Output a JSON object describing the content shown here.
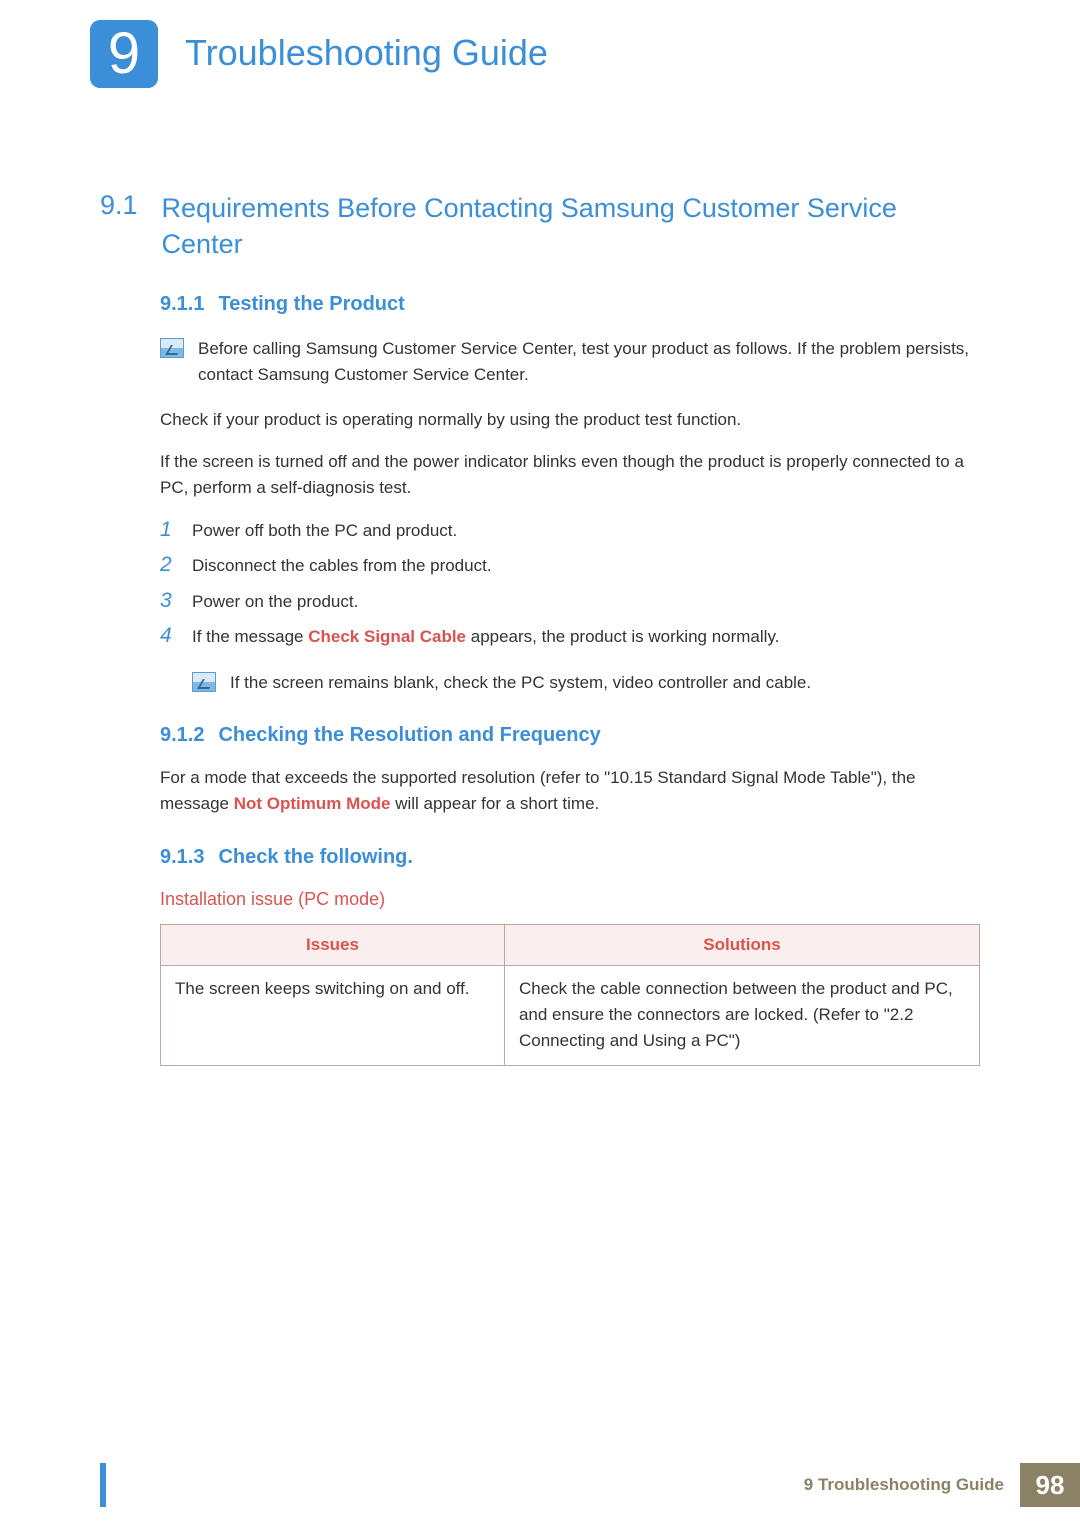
{
  "colors": {
    "accent_blue": "#3b8ed8",
    "accent_red": "#d9534f",
    "footer_tan": "#8b8265",
    "table_header_bg": "#fbeeee",
    "table_border": "#bca8a0",
    "body_text": "#333333"
  },
  "chapter": {
    "number": "9",
    "title": "Troubleshooting Guide"
  },
  "section": {
    "number": "9.1",
    "title": "Requirements Before Contacting Samsung Customer Service Center"
  },
  "sub1": {
    "number": "9.1.1",
    "title": "Testing the Product",
    "note": "Before calling Samsung Customer Service Center, test your product as follows. If the problem persists, contact Samsung Customer Service Center.",
    "p1": "Check if your product is operating normally by using the product test function.",
    "p2": "If the screen is turned off and the power indicator blinks even though the product is properly connected to a PC, perform a self-diagnosis test.",
    "steps": {
      "s1": "Power off both the PC and product.",
      "s2": "Disconnect the cables from the product.",
      "s3": "Power on the product.",
      "s4_a": "If the message ",
      "s4_hl": "Check Signal Cable",
      "s4_b": " appears, the product is working normally."
    },
    "note2": "If the screen remains blank, check the PC system, video controller and cable."
  },
  "sub2": {
    "number": "9.1.2",
    "title": "Checking the Resolution and Frequency",
    "p_a": "For a mode that exceeds the supported resolution (refer to \"10.15 Standard Signal Mode Table\"), the message ",
    "p_hl": "Not Optimum Mode",
    "p_b": " will appear for a short time."
  },
  "sub3": {
    "number": "9.1.3",
    "title": "Check the following.",
    "h4": "Installation issue (PC mode)",
    "table": {
      "col1": "Issues",
      "col2": "Solutions",
      "row1_issue": "The screen keeps switching on and off.",
      "row1_sol": "Check the cable connection between the product and PC, and ensure the connectors are locked. (Refer to \"2.2 Connecting and Using a PC\")"
    }
  },
  "footer": {
    "label": "9 Troubleshooting Guide",
    "page": "98"
  }
}
